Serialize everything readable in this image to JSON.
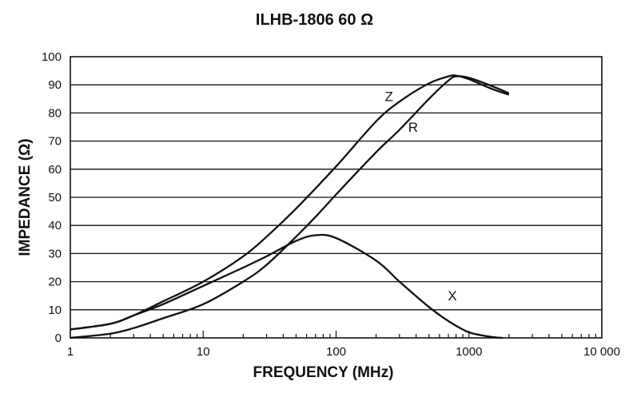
{
  "chart_data": {
    "type": "line",
    "title": "ILHB-1806 60 Ω",
    "xlabel": "FREQUENCY (MHz)",
    "ylabel": "IMPEDANCE (Ω)",
    "xscale": "log",
    "xlim": [
      1,
      10000
    ],
    "ylim": [
      0,
      100
    ],
    "x_ticks": [
      1,
      10,
      100,
      1000,
      10000
    ],
    "x_tick_labels": [
      "1",
      "10",
      "100",
      "1000",
      "10 000"
    ],
    "y_ticks": [
      0,
      10,
      20,
      30,
      40,
      50,
      60,
      70,
      80,
      90,
      100
    ],
    "y_tick_labels": [
      "0",
      "10",
      "20",
      "30",
      "40",
      "50",
      "60",
      "70",
      "80",
      "90",
      "100"
    ],
    "grid": "horizontal",
    "series": [
      {
        "name": "Z",
        "x": [
          1,
          2,
          3,
          5,
          10,
          20,
          30,
          50,
          100,
          200,
          300,
          500,
          700,
          800,
          1000,
          1500,
          2000
        ],
        "y": [
          3,
          5,
          8,
          13,
          20,
          29,
          36,
          46,
          61,
          77,
          84,
          90.5,
          93,
          93.3,
          92,
          88.5,
          86.5
        ]
      },
      {
        "name": "R",
        "x": [
          1,
          2,
          3,
          5,
          10,
          20,
          30,
          50,
          70,
          100,
          200,
          300,
          500,
          700,
          800,
          1000,
          1500,
          2000
        ],
        "y": [
          0,
          1.5,
          3.5,
          7,
          12,
          20,
          26,
          36,
          43,
          51,
          66,
          74,
          85,
          91.5,
          93,
          92.5,
          89.5,
          87
        ]
      },
      {
        "name": "X",
        "x": [
          1,
          2,
          3,
          5,
          10,
          20,
          30,
          50,
          70,
          100,
          200,
          300,
          500,
          700,
          1000,
          1500,
          1800
        ],
        "y": [
          3,
          5,
          8,
          12,
          18.5,
          25,
          29,
          34.5,
          36.5,
          35.5,
          27.5,
          20,
          11,
          6,
          2,
          0.3,
          0
        ]
      }
    ],
    "series_label_positions": [
      {
        "name": "Z",
        "x": 250,
        "y": 86
      },
      {
        "name": "R",
        "x": 380,
        "y": 75
      },
      {
        "name": "X",
        "x": 750,
        "y": 15
      }
    ]
  }
}
